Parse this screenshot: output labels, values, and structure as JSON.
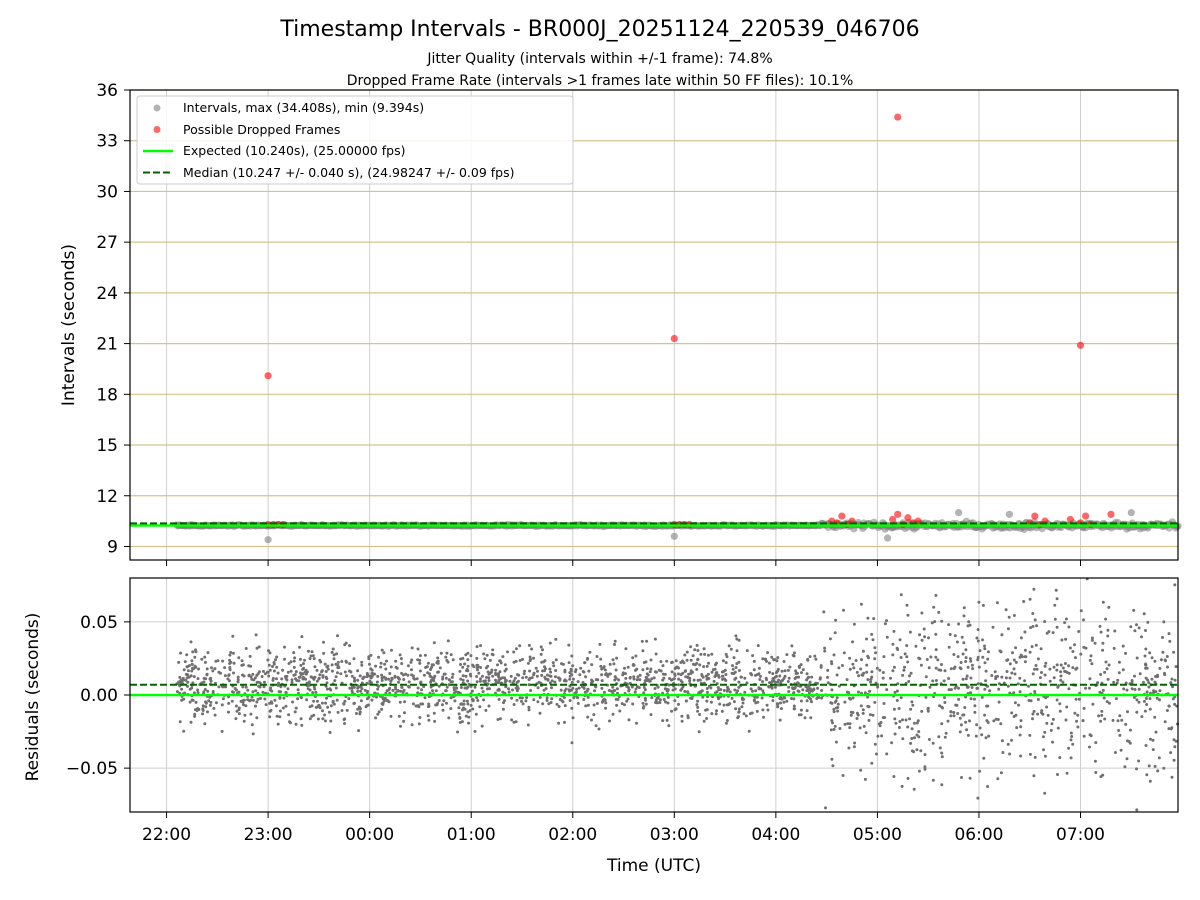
{
  "figure": {
    "title": "Timestamp Intervals - BR000J_20251124_220539_046706",
    "subtitle_1": "Jitter Quality (intervals within +/-1 frame): 74.8%",
    "subtitle_2": "Dropped Frame Rate (intervals >1 frames late within 50 FF files): 10.1%",
    "xlabel": "Time (UTC)"
  },
  "colors": {
    "interval_points": "#808080",
    "dropped_points": "#ff0000",
    "expected_line": "#00ff00",
    "median_line": "#006400",
    "top_grid": "#d4c48a",
    "grid": "#cfcfcf",
    "residual_points": "#707070"
  },
  "chart_data": [
    {
      "type": "scatter",
      "ylabel": "Intervals (seconds)",
      "x_axis": {
        "unit": "hours since 22:00 UTC",
        "range": [
          -0.36,
          9.96
        ],
        "ticks": [
          0,
          1,
          2,
          3,
          4,
          5,
          6,
          7,
          8,
          9
        ],
        "tick_labels": [
          "22:00",
          "23:00",
          "00:00",
          "01:00",
          "02:00",
          "03:00",
          "04:00",
          "05:00",
          "06:00",
          "07:00"
        ],
        "grid_vertical": true
      },
      "ylim": [
        8.2,
        36
      ],
      "yticks": [
        9,
        12,
        15,
        18,
        21,
        24,
        27,
        30,
        33,
        36
      ],
      "grid_horizontal": true,
      "legend": {
        "placement": "upper-left",
        "entries": [
          "Intervals, max (34.408s), min (9.394s)",
          "Possible Dropped Frames",
          "Expected (10.240s), (25.00000 fps)",
          "Median (10.247 +/- 0.040 s), (24.98247 +/- 0.09 fps)"
        ]
      },
      "series": [
        {
          "name": "Intervals",
          "style": "scatter",
          "notes": "dense band along y≈10.24 from x=0.1 to x=9.96; scatter widens after x≈6.5",
          "band": {
            "x_start": 0.1,
            "x_end": 9.96,
            "y_center": 10.24
          },
          "outliers": [
            [
              1.0,
              9.4
            ],
            [
              5.0,
              9.6
            ],
            [
              7.1,
              9.5
            ],
            [
              7.8,
              11.0
            ],
            [
              8.3,
              10.9
            ],
            [
              9.5,
              11.0
            ]
          ]
        },
        {
          "name": "Possible Dropped Frames",
          "style": "scatter",
          "points": [
            [
              1.0,
              19.1
            ],
            [
              5.0,
              21.3
            ],
            [
              7.2,
              34.4
            ],
            [
              9.0,
              20.9
            ],
            [
              1.0,
              10.3
            ],
            [
              1.05,
              10.3
            ],
            [
              1.1,
              10.3
            ],
            [
              1.15,
              10.3
            ],
            [
              5.0,
              10.3
            ],
            [
              5.05,
              10.3
            ],
            [
              5.1,
              10.3
            ],
            [
              5.15,
              10.3
            ],
            [
              6.55,
              10.5
            ],
            [
              6.6,
              10.4
            ],
            [
              6.65,
              10.8
            ],
            [
              6.7,
              10.3
            ],
            [
              6.75,
              10.5
            ],
            [
              7.15,
              10.6
            ],
            [
              7.2,
              10.9
            ],
            [
              7.25,
              10.3
            ],
            [
              7.3,
              10.7
            ],
            [
              7.35,
              10.4
            ],
            [
              7.4,
              10.5
            ],
            [
              8.5,
              10.4
            ],
            [
              8.55,
              10.8
            ],
            [
              8.6,
              10.3
            ],
            [
              8.65,
              10.5
            ],
            [
              8.9,
              10.6
            ],
            [
              9.0,
              10.4
            ],
            [
              9.05,
              10.8
            ],
            [
              9.1,
              10.3
            ],
            [
              9.3,
              10.9
            ]
          ]
        },
        {
          "name": "Expected",
          "style": "solid-line",
          "y": 10.24,
          "x_range": [
            -0.36,
            9.96
          ]
        },
        {
          "name": "Median",
          "style": "dashed-line",
          "y": 10.247,
          "x_range": [
            -0.36,
            9.96
          ]
        }
      ]
    },
    {
      "type": "scatter",
      "ylabel": "Residuals (seconds)",
      "x_axis": {
        "unit": "hours since 22:00 UTC",
        "range": [
          -0.36,
          9.96
        ],
        "ticks": [
          0,
          1,
          2,
          3,
          4,
          5,
          6,
          7,
          8,
          9
        ],
        "tick_labels": [
          "22:00",
          "23:00",
          "00:00",
          "01:00",
          "02:00",
          "03:00",
          "04:00",
          "05:00",
          "06:00",
          "07:00"
        ],
        "grid_vertical": true
      },
      "ylim": [
        -0.08,
        0.08
      ],
      "yticks": [
        -0.05,
        0.0,
        0.05
      ],
      "ytick_labels": [
        "−0.05",
        "0.00",
        "0.05"
      ],
      "grid_horizontal": true,
      "series": [
        {
          "name": "Residuals",
          "style": "scatter",
          "notes": "~2600 points between x=0.1 and x=9.96; spread ±0.03 before x≈6.5, up to ±0.09 after",
          "segments": [
            {
              "x_start": 0.1,
              "x_end": 6.45,
              "y_center": 0.008,
              "y_spread": 0.02
            },
            {
              "x_start": 6.45,
              "x_end": 9.96,
              "y_center": 0.006,
              "y_spread": 0.045
            }
          ]
        },
        {
          "name": "Expected",
          "style": "solid-line",
          "y": 0.0
        },
        {
          "name": "Median",
          "style": "dashed-line",
          "y": 0.007
        }
      ]
    }
  ]
}
